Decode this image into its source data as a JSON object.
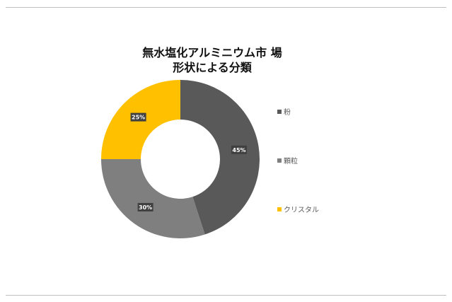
{
  "chart_data": {
    "type": "pie",
    "donut": true,
    "title": [
      "無水塩化アルミニウム市 場",
      "形状による分類"
    ],
    "categories": [
      "粉",
      "顆粒",
      "クリスタル"
    ],
    "values": [
      45,
      30,
      25
    ],
    "labels": [
      "45%",
      "30%",
      "25%"
    ],
    "colors": [
      "#595959",
      "#7f7f7f",
      "#ffc000"
    ],
    "legend_position": "right"
  }
}
